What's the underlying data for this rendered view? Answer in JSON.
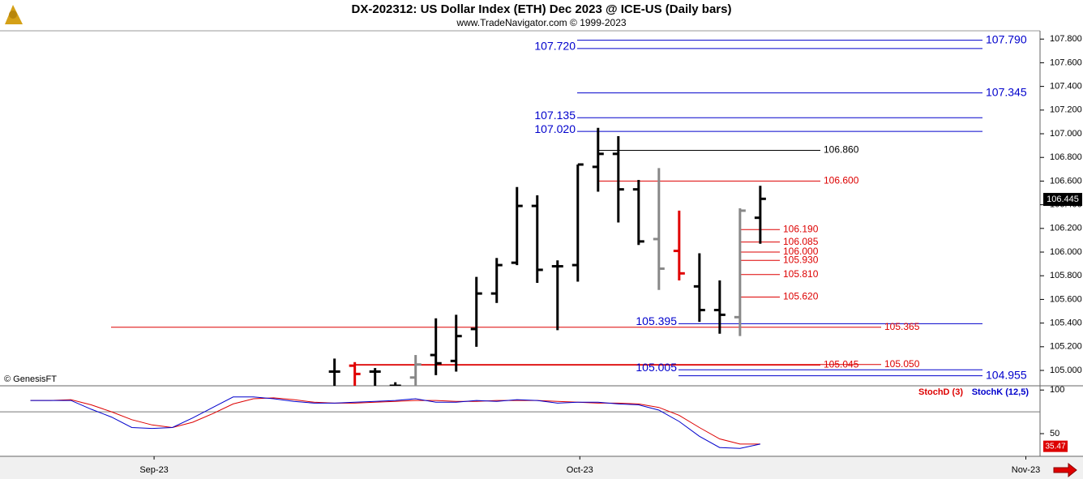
{
  "chart_data": [
    {
      "type": "ohlc",
      "title": "DX-202312:  US Dollar Index (ETH) Dec 2023 @ ICE-US  (Daily bars)",
      "subtitle": "www.TradeNavigator.com © 1999-2023",
      "copyright": "© GenesisFT",
      "x": [
        0,
        1,
        2,
        3,
        4,
        5,
        6,
        7,
        8,
        9,
        10,
        11,
        12,
        13,
        14,
        15,
        16,
        17,
        18,
        19,
        20,
        21
      ],
      "open": [
        104.99,
        105.04,
        104.99,
        104.87,
        104.94,
        105.13,
        105.08,
        105.35,
        105.65,
        105.91,
        106.39,
        105.88,
        105.89,
        106.72,
        106.83,
        106.53,
        106.11,
        106.01,
        105.71,
        105.51,
        105.45,
        106.29
      ],
      "high": [
        105.1,
        105.07,
        105.02,
        104.9,
        105.13,
        105.44,
        105.47,
        105.79,
        105.95,
        106.55,
        106.48,
        105.93,
        106.74,
        107.05,
        106.98,
        106.61,
        106.71,
        106.35,
        105.99,
        105.76,
        106.37,
        106.56
      ],
      "low": [
        104.85,
        104.85,
        104.85,
        104.85,
        104.85,
        104.96,
        104.99,
        105.2,
        105.57,
        105.89,
        105.74,
        105.34,
        105.75,
        106.51,
        106.25,
        106.06,
        105.68,
        105.76,
        105.41,
        105.31,
        105.29,
        106.07
      ],
      "close": [
        104.99,
        104.97,
        104.99,
        104.87,
        105.05,
        105.06,
        105.29,
        105.65,
        105.89,
        106.39,
        105.85,
        105.88,
        106.74,
        106.83,
        106.53,
        106.09,
        105.86,
        105.82,
        105.51,
        105.47,
        106.35,
        106.45
      ],
      "colors": [
        "#000000",
        "#e00000",
        "#000000",
        "#000000",
        "#888888",
        "#000000",
        "#000000",
        "#000000",
        "#000000",
        "#000000",
        "#000000",
        "#000000",
        "#000000",
        "#000000",
        "#000000",
        "#000000",
        "#888888",
        "#e00000",
        "#000000",
        "#000000",
        "#888888",
        "#000000"
      ],
      "xlim": [
        -16.5,
        34.8
      ],
      "ylim": [
        104.87,
        107.87
      ],
      "yticks": [
        {
          "value": 105.0,
          "label": "105.000"
        },
        {
          "value": 105.2,
          "label": "105.200"
        },
        {
          "value": 105.4,
          "label": "105.400"
        },
        {
          "value": 105.6,
          "label": "105.600"
        },
        {
          "value": 105.8,
          "label": "105.800"
        },
        {
          "value": 106.0,
          "label": "106.000"
        },
        {
          "value": 106.2,
          "label": "106.200"
        },
        {
          "value": 106.4,
          "label": "106.400"
        },
        {
          "value": 106.6,
          "label": "106.600"
        },
        {
          "value": 106.8,
          "label": "106.800"
        },
        {
          "value": 107.0,
          "label": "107.000"
        },
        {
          "value": 107.2,
          "label": "107.200"
        },
        {
          "value": 107.4,
          "label": "107.400"
        },
        {
          "value": 107.6,
          "label": "107.600"
        },
        {
          "value": 107.8,
          "label": "107.800"
        }
      ],
      "last_price": 106.445,
      "levels": [
        {
          "value": 107.79,
          "label": "107.790",
          "color": "#0000cc"
        },
        {
          "value": 107.72,
          "label": "107.720",
          "color": "#0000cc"
        },
        {
          "value": 107.345,
          "label": "107.345",
          "color": "#0000cc"
        },
        {
          "value": 107.135,
          "label": "107.135",
          "color": "#0000cc"
        },
        {
          "value": 107.02,
          "label": "107.020",
          "color": "#0000cc"
        },
        {
          "value": 106.86,
          "label": "106.860",
          "color": "#000000"
        },
        {
          "value": 106.6,
          "label": "106.600",
          "color": "#dd0000"
        },
        {
          "value": 106.19,
          "label": "106.190",
          "color": "#dd0000"
        },
        {
          "value": 106.085,
          "label": "106.085",
          "color": "#dd0000"
        },
        {
          "value": 106.0,
          "label": "106.000",
          "color": "#dd0000"
        },
        {
          "value": 105.93,
          "label": "105.930",
          "color": "#dd0000"
        },
        {
          "value": 105.81,
          "label": "105.810",
          "color": "#dd0000"
        },
        {
          "value": 105.62,
          "label": "105.620",
          "color": "#dd0000"
        },
        {
          "value": 105.395,
          "label": "105.395",
          "color": "#0000cc"
        },
        {
          "value": 105.365,
          "label": "105.365",
          "color": "#dd0000"
        },
        {
          "value": 105.045,
          "label": "105.045",
          "color": "#dd0000"
        },
        {
          "value": 105.05,
          "label": "105.050",
          "color": "#dd0000"
        },
        {
          "value": 105.005,
          "label": "105.005",
          "color": "#0000cc"
        },
        {
          "value": 104.955,
          "label": "104.955",
          "color": "#0000cc"
        }
      ],
      "xticks": [
        {
          "value": -8.9,
          "label": "Sep-23"
        },
        {
          "value": 12.1,
          "label": "Oct-23"
        },
        {
          "value": 34.1,
          "label": "Nov-23"
        }
      ]
    },
    {
      "type": "line",
      "x": [
        -15,
        -14,
        -13,
        -12,
        -11,
        -10,
        -9,
        -8,
        -7,
        -6,
        -5,
        -4,
        -3,
        -2,
        -1,
        0,
        1,
        2,
        3,
        4,
        5,
        6,
        7,
        8,
        9,
        10,
        11,
        12,
        13,
        14,
        15,
        16,
        17,
        18,
        19,
        20,
        21
      ],
      "series": [
        {
          "name": "StochD (3)",
          "color": "#dd0000",
          "values": [
            88,
            88,
            89,
            83,
            75,
            66,
            60,
            57,
            63,
            73,
            84,
            90,
            91,
            89,
            86,
            85,
            85,
            86,
            87,
            88,
            88,
            87,
            87,
            88,
            88,
            88,
            87,
            86,
            85,
            85,
            84,
            80,
            71,
            57,
            44,
            38,
            38
          ]
        },
        {
          "name": "StochK (12,5)",
          "color": "#0000cc",
          "values": [
            88,
            88,
            88,
            78,
            69,
            57,
            56,
            57,
            68,
            80,
            92,
            92,
            90,
            87,
            85,
            85,
            86,
            87,
            88,
            90,
            86,
            86,
            88,
            87,
            89,
            88,
            85,
            86,
            86,
            84,
            83,
            77,
            64,
            47,
            34,
            33,
            38
          ]
        }
      ],
      "ylim": [
        24,
        103
      ],
      "yticks": [
        50,
        100
      ],
      "hlines": [
        75
      ],
      "last_value": 35.47
    }
  ]
}
